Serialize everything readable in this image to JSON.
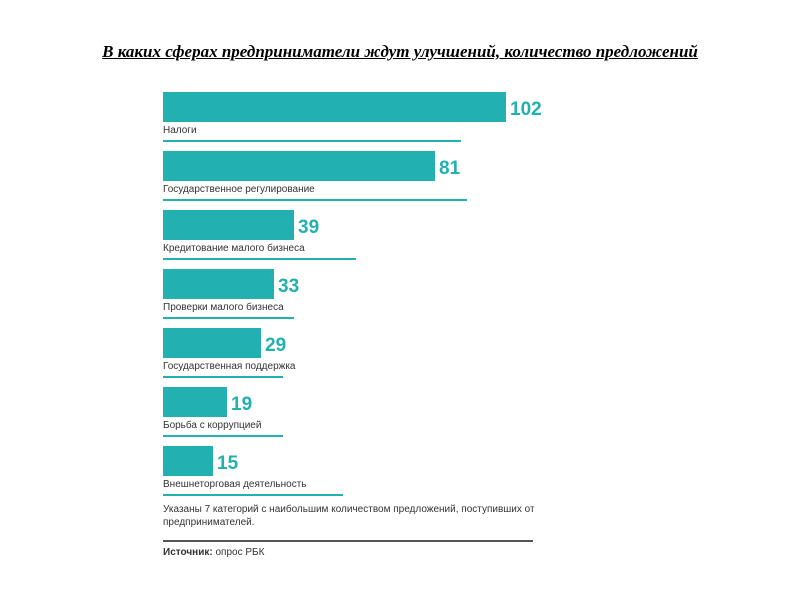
{
  "colors": {
    "bar": "#22b0b0",
    "value_text": "#22b0b0",
    "label_text": "#333333",
    "underline": "#22b0b0"
  },
  "chart_data": {
    "type": "bar",
    "orientation": "horizontal",
    "title": "В каких сферах предприниматели ждут улучшений, количество предложений",
    "categories": [
      "Налоги",
      "Государственное регулирование",
      "Кредитование малого бизнеса",
      "Проверки малого бизнеса",
      "Государственная поддержка",
      "Борьба с коррупцией",
      "Внешнеторговая деятельность"
    ],
    "values": [
      102,
      81,
      39,
      33,
      29,
      19,
      15
    ],
    "note": "Указаны 7 категорий с наибольшим количеством предложений, поступивших от предпринимателей.",
    "source_key": "Источник:",
    "source_value": "опрос РБК"
  }
}
